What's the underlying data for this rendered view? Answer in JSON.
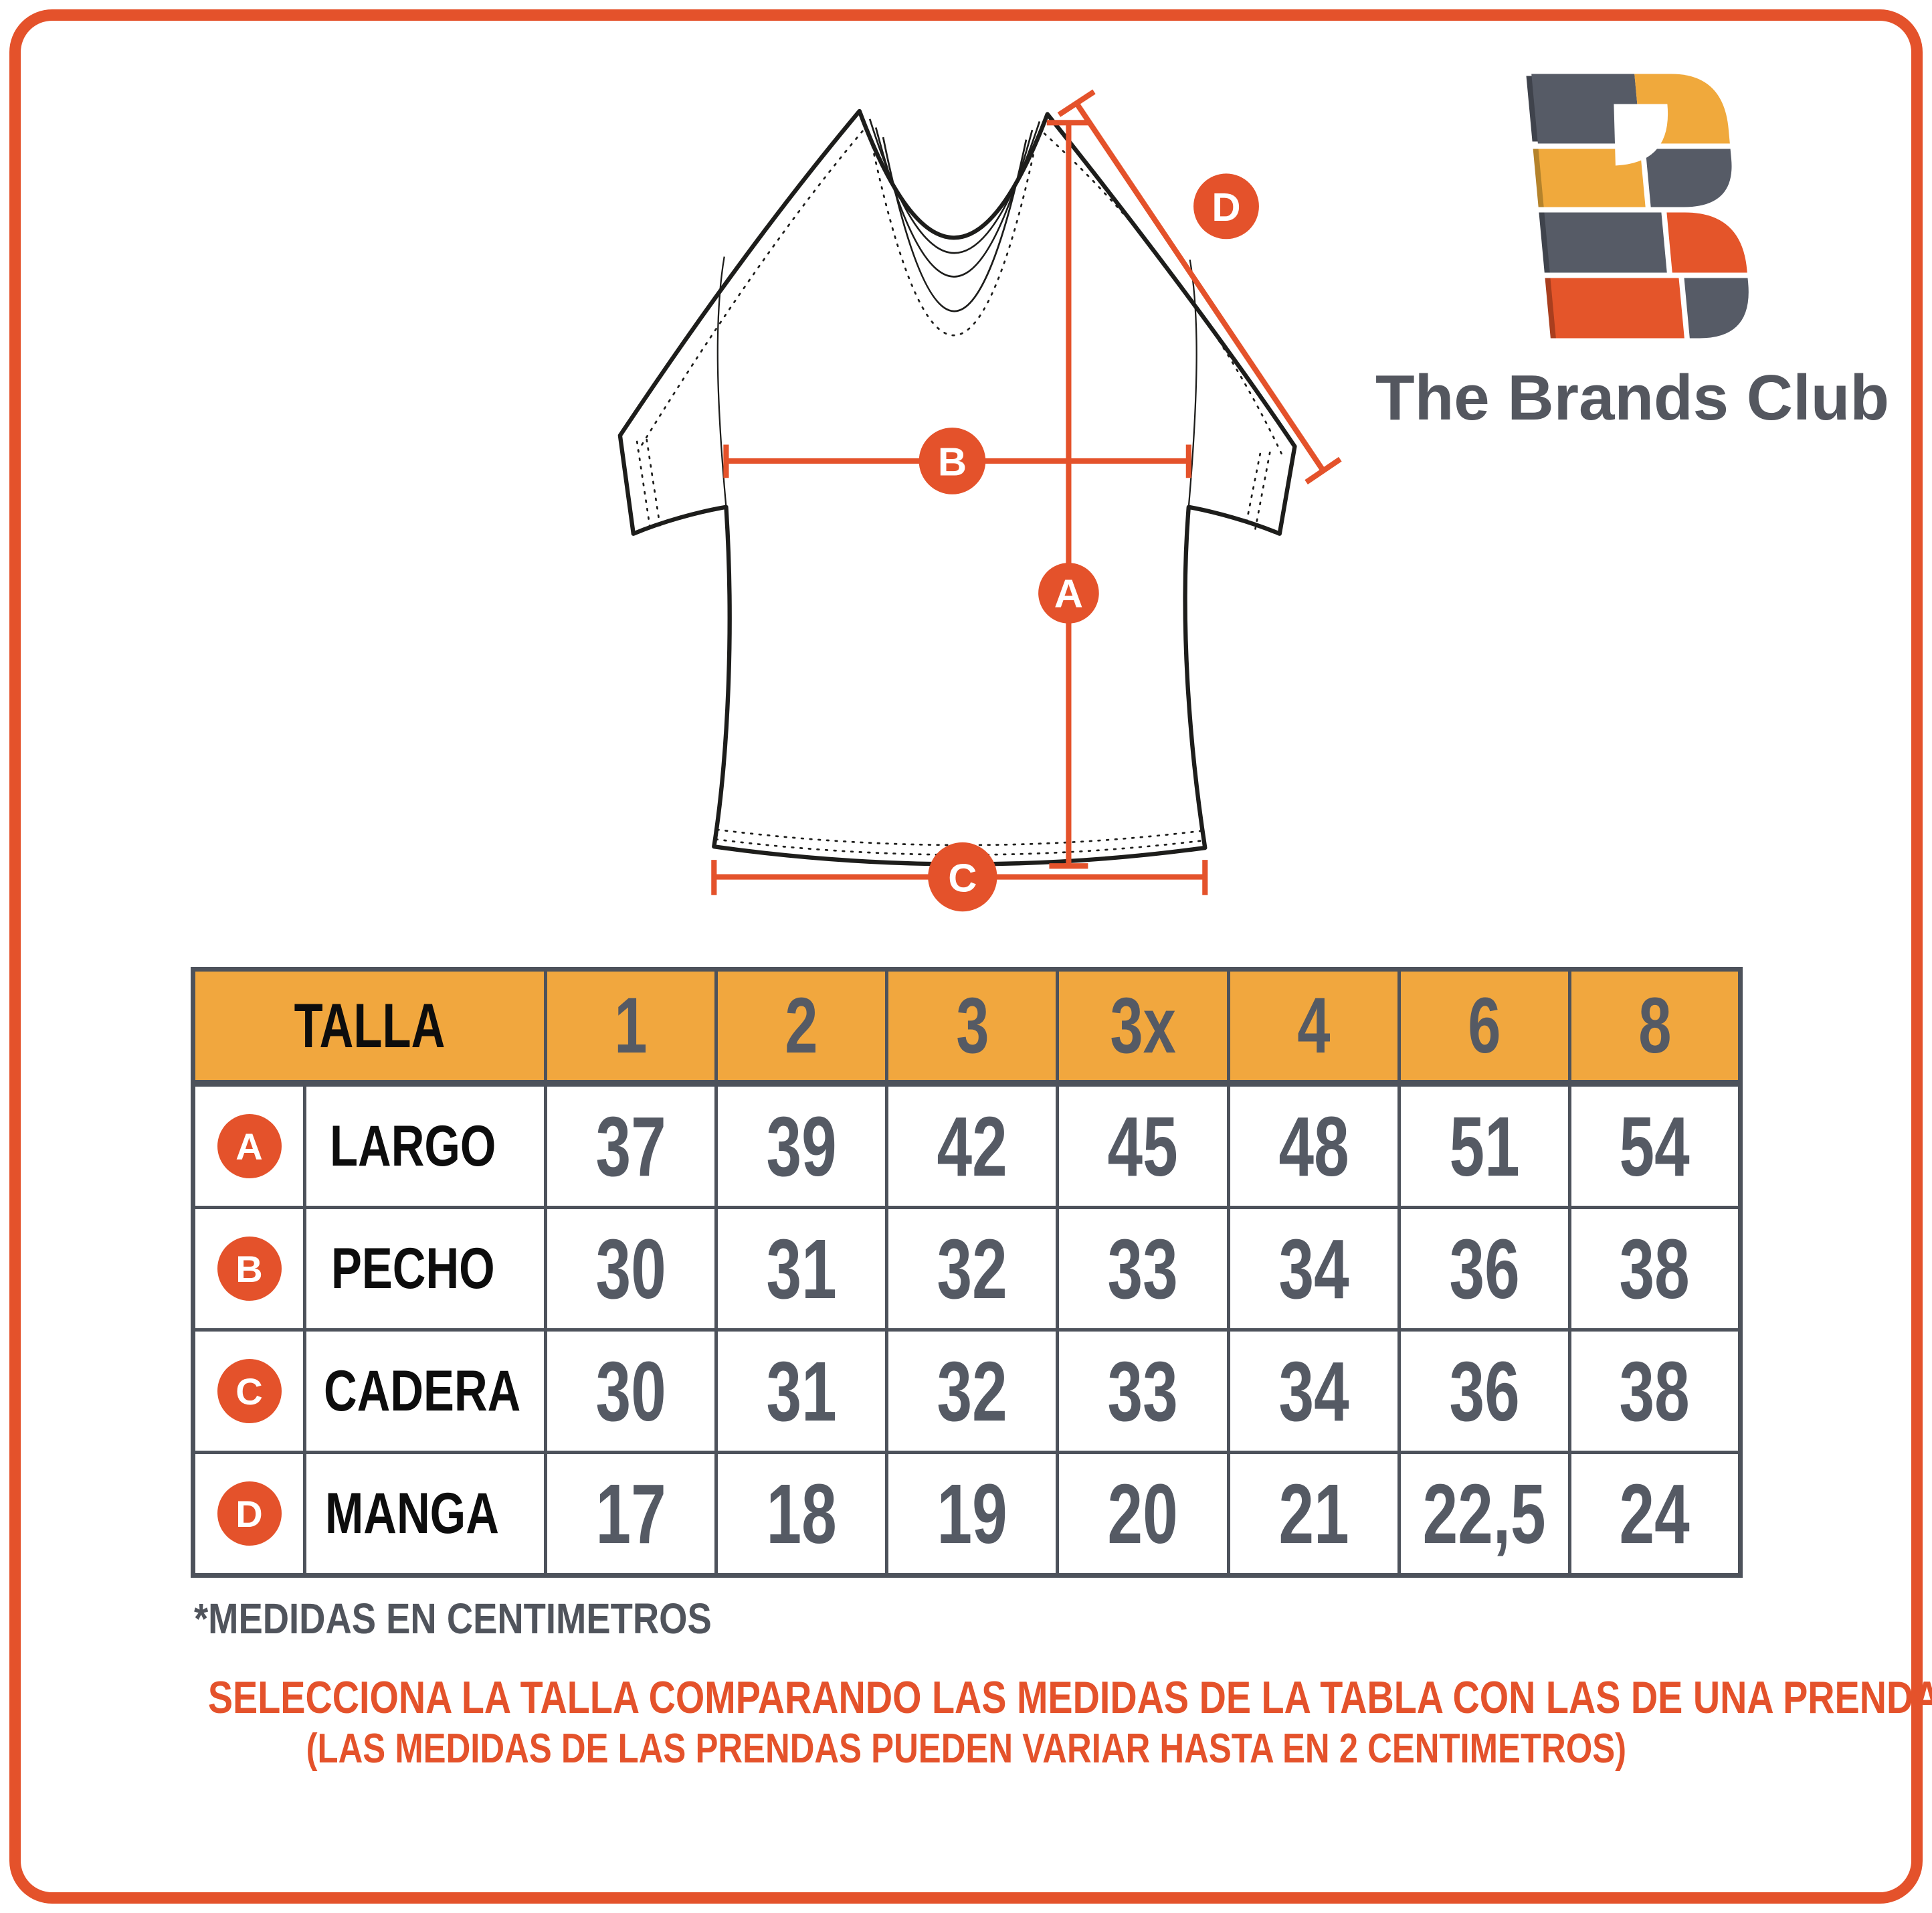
{
  "brand": {
    "wordmark": "The Brands Club"
  },
  "colors": {
    "orange": "#E4522B",
    "yellow": "#F1A73E",
    "slate": "#555A64",
    "table_border": "#4D525B",
    "ink": "#111111"
  },
  "diagram": {
    "measure_labels": {
      "a": "A",
      "b": "B",
      "c": "C",
      "d": "D"
    }
  },
  "size_table": {
    "header_label": "TALLA",
    "size_columns": [
      "1",
      "2",
      "3",
      "3x",
      "4",
      "6",
      "8"
    ],
    "rows": [
      {
        "letter": "A",
        "label": "LARGO",
        "values": [
          "37",
          "39",
          "42",
          "45",
          "48",
          "51",
          "54"
        ]
      },
      {
        "letter": "B",
        "label": "PECHO",
        "values": [
          "30",
          "31",
          "32",
          "33",
          "34",
          "36",
          "38"
        ]
      },
      {
        "letter": "C",
        "label": "CADERA",
        "values": [
          "30",
          "31",
          "32",
          "33",
          "34",
          "36",
          "38"
        ]
      },
      {
        "letter": "D",
        "label": "MANGA",
        "values": [
          "17",
          "18",
          "19",
          "20",
          "21",
          "22,5",
          "24"
        ]
      }
    ]
  },
  "footnote": "*MEDIDAS EN CENTIMETROS",
  "instructions": {
    "line1": "SELECCIONA LA TALLA COMPARANDO LAS MEDIDAS DE LA TABLA CON LAS DE UNA PRENDA SIMILAR",
    "line2": "(LAS MEDIDAS DE LAS PRENDAS PUEDEN VARIAR HASTA EN 2 CENTIMETROS)"
  }
}
